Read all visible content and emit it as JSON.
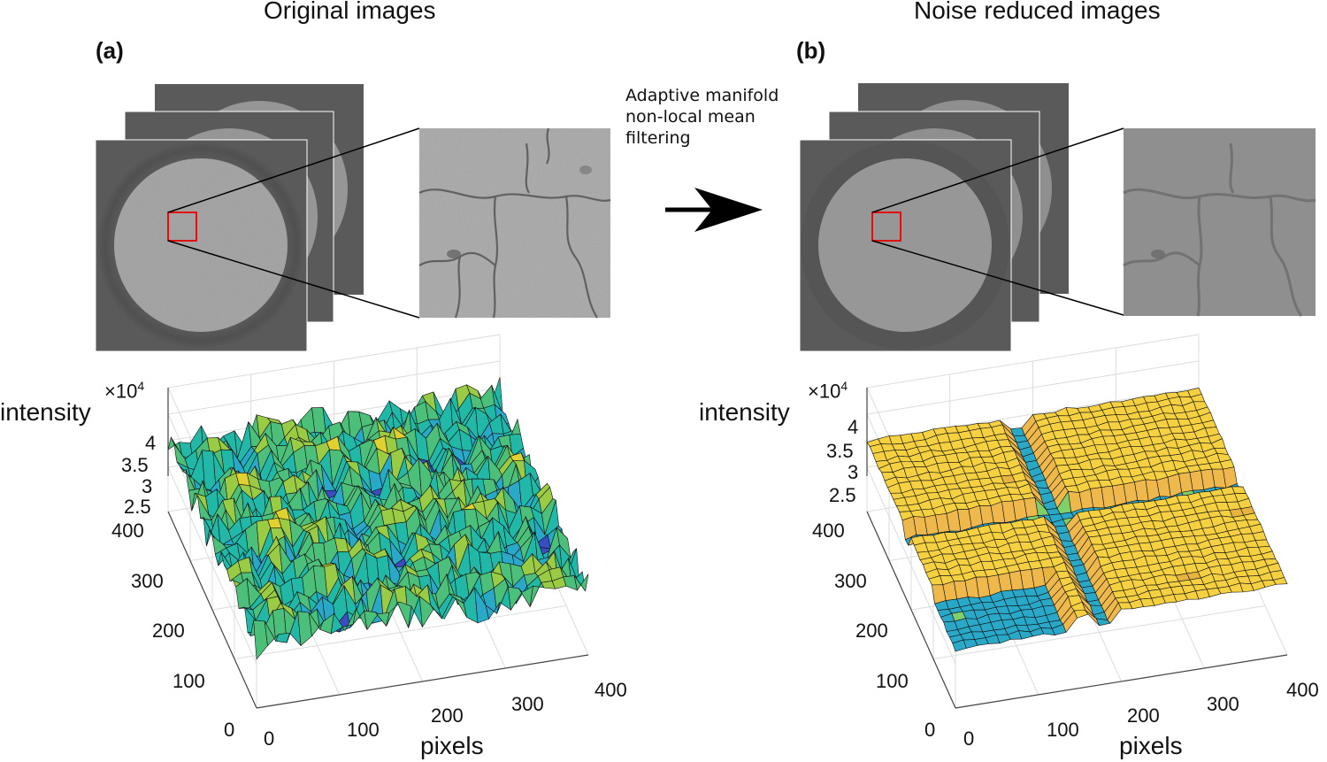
{
  "panels": [
    {
      "heading": "Original images",
      "label": "(a)",
      "plot": {
        "z_label": "intensity",
        "z_exponent": "×10",
        "z_exponent_power": "4",
        "z_ticks": [
          "4",
          "3.5",
          "3",
          "2.5"
        ],
        "y_ticks": [
          "400",
          "300",
          "200",
          "100",
          "0"
        ],
        "x_ticks": [
          "0",
          "100",
          "200",
          "300",
          "400"
        ],
        "x_label": "pixels"
      }
    },
    {
      "heading": "Noise reduced images",
      "label": "(b)",
      "plot": {
        "z_label": "intensity",
        "z_exponent": "×10",
        "z_exponent_power": "4",
        "z_ticks": [
          "4",
          "3.5",
          "3",
          "2.5"
        ],
        "y_ticks": [
          "400",
          "300",
          "200",
          "100",
          "0"
        ],
        "x_ticks": [
          "0",
          "100",
          "200",
          "300",
          "400"
        ],
        "x_label": "pixels"
      }
    }
  ],
  "process": {
    "caption_lines": [
      "Adaptive manifold",
      "non-local mean",
      "filtering"
    ]
  },
  "colors": {
    "slice_bg": "#5a5a5a",
    "sample_noisy": "#a8a8a8",
    "sample_smooth": "#9a9a9a",
    "roi_box": "#e01010",
    "surface_noisy": [
      "#3b4cc0",
      "#2aa8c8",
      "#22b8a8",
      "#4cc07a",
      "#9acb45",
      "#e0d030"
    ],
    "surface_smooth": [
      "#f2c23a",
      "#f5d040",
      "#e8b440",
      "#eeb84c",
      "#7fcf6a",
      "#2aa8c8",
      "#3b4cc0"
    ]
  }
}
